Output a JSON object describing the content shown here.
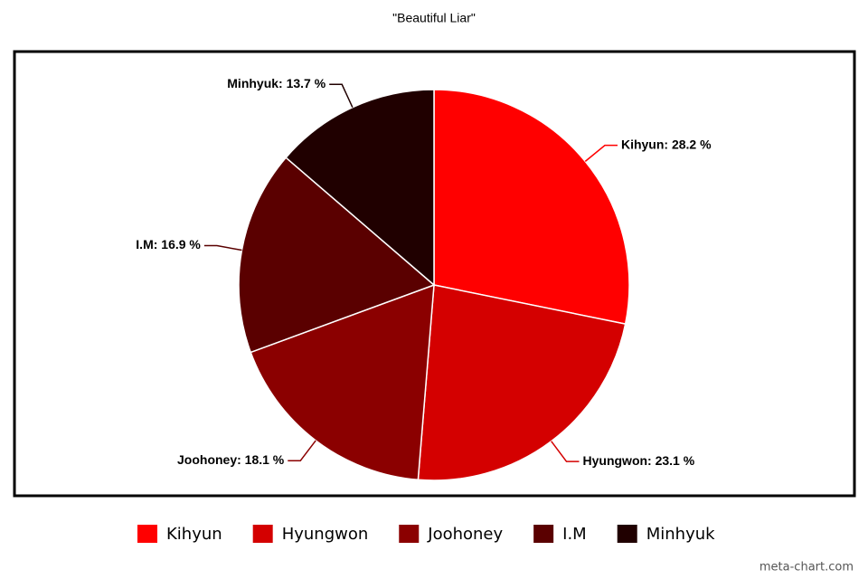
{
  "chart_data": {
    "type": "pie",
    "title": "\"Beautiful Liar\"",
    "categories": [
      "Kihyun",
      "Hyungwon",
      "Joohoney",
      "I.M",
      "Minhyuk"
    ],
    "values": [
      28.2,
      23.1,
      18.1,
      16.9,
      13.7
    ],
    "value_labels": [
      "Kihyun: 28.2 %",
      "Hyungwon: 23.1 %",
      "Joohoney: 18.1 %",
      "I.M: 16.9 %",
      "Minhyuk: 13.7 %"
    ],
    "colors": [
      "#ff0000",
      "#d40000",
      "#8b0000",
      "#5a0000",
      "#200000"
    ],
    "legend": "bottom",
    "watermark": "meta-chart.com"
  }
}
